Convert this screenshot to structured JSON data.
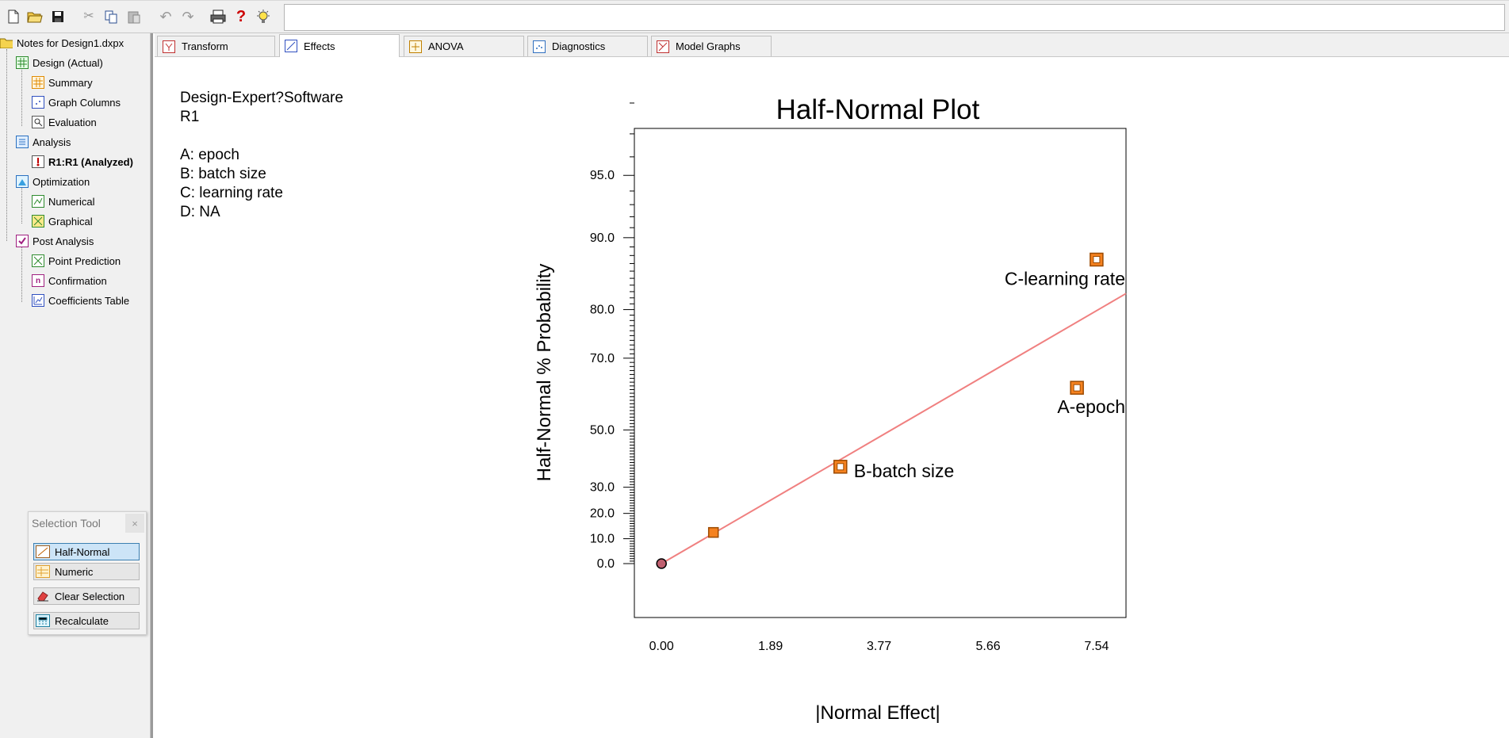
{
  "toolbar": {
    "icons": [
      "new-file-icon",
      "open-folder-icon",
      "save-icon",
      "cut-icon",
      "copy-icon",
      "paste-icon",
      "undo-icon",
      "redo-icon",
      "print-icon",
      "help-icon",
      "tip-icon"
    ]
  },
  "tree": {
    "root": "Notes for Design1.dxpx",
    "design": "Design (Actual)",
    "summary": "Summary",
    "graph_columns": "Graph Columns",
    "evaluation": "Evaluation",
    "analysis": "Analysis",
    "r1": "R1:R1 (Analyzed)",
    "optimization": "Optimization",
    "numerical": "Numerical",
    "graphical": "Graphical",
    "post_analysis": "Post Analysis",
    "point_prediction": "Point Prediction",
    "confirmation": "Confirmation",
    "coefficients_table": "Coefficients Table"
  },
  "selection_tool": {
    "title": "Selection Tool",
    "close": "×",
    "half_normal": "Half-Normal",
    "numeric": "Numeric",
    "clear_selection": "Clear Selection",
    "recalculate": "Recalculate"
  },
  "tabs": {
    "transform": "Transform",
    "effects": "Effects",
    "anova": "ANOVA",
    "diagnostics": "Diagnostics",
    "model_graphs": "Model Graphs"
  },
  "notes": {
    "software": "Design-Expert?Software",
    "response": "R1",
    "factor_a": "A: epoch",
    "factor_b": "B: batch size",
    "factor_c": "C: learning rate",
    "factor_d": "D: NA"
  },
  "chart_data": {
    "type": "scatter",
    "title": "Half-Normal Plot",
    "xlabel": "|Normal Effect|",
    "ylabel": "Half-Normal % Probability",
    "x_ticks": [
      "0.00",
      "1.89",
      "3.77",
      "5.66",
      "7.54"
    ],
    "x_tick_values": [
      0.0,
      1.89,
      3.77,
      5.66,
      7.54
    ],
    "y_ticks": [
      "0.0",
      "10.0",
      "20.0",
      "30.0",
      "50.0",
      "70.0",
      "80.0",
      "90.0",
      "95.0"
    ],
    "y_tick_values": [
      0,
      10,
      20,
      30,
      50,
      70,
      80,
      90,
      95
    ],
    "xlim": [
      -0.47,
      8.05
    ],
    "points": [
      {
        "x": 0.0,
        "y": 0.0,
        "label": "",
        "kind": "origin"
      },
      {
        "x": 0.9,
        "y": 12.5,
        "label": "",
        "kind": "error"
      },
      {
        "x": 3.1,
        "y": 37.5,
        "label": "B-batch size",
        "kind": "effect"
      },
      {
        "x": 7.2,
        "y": 62.5,
        "label": "A-epoch",
        "kind": "effect"
      },
      {
        "x": 7.54,
        "y": 87.5,
        "label": "C-learning rate",
        "kind": "effect"
      }
    ],
    "fit_line": {
      "x": [
        0.0,
        8.05
      ],
      "y": [
        0.0,
        82.7
      ]
    },
    "colors": {
      "line": "#f08080",
      "marker_fill": "#f58220",
      "marker_edge": "#9c4a00",
      "origin": "#c06070"
    }
  }
}
